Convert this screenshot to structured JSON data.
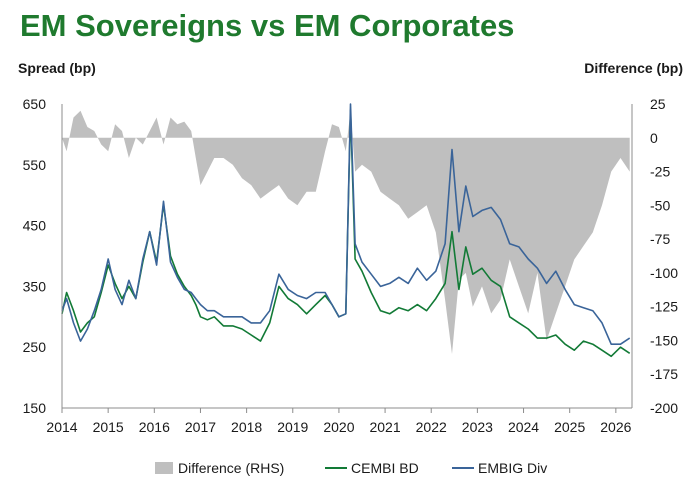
{
  "title": "EM Sovereigns vs EM Corporates",
  "ylabel_left": "Spread (bp)",
  "ylabel_right": "Difference (bp)",
  "colors": {
    "title": "#1f7a2e",
    "difference": "#bfbfbf",
    "cembi": "#127a36",
    "embig": "#3a6499"
  },
  "chart_data": {
    "type": "line",
    "title": "EM Sovereigns vs EM Corporates",
    "xlabel": "",
    "ylabel": "Spread (bp)",
    "y2label": "Difference (bp)",
    "xlim": [
      2014.0,
      2026.35
    ],
    "ylim": [
      150,
      650
    ],
    "y2lim": [
      -200,
      25
    ],
    "x_ticks": [
      "2014",
      "2015",
      "2016",
      "2017",
      "2018",
      "2019",
      "2020",
      "2021",
      "2022",
      "2023",
      "2024",
      "2025",
      "2026"
    ],
    "y_ticks": [
      150,
      250,
      350,
      450,
      550,
      650
    ],
    "y2_ticks": [
      25,
      0,
      -25,
      -50,
      -75,
      -100,
      -125,
      -150,
      -175,
      -200
    ],
    "grid": false,
    "legend_position": "bottom",
    "series": [
      {
        "name": "Difference (RHS)",
        "type": "area",
        "axis": "right",
        "x": [
          2014.0,
          2014.1,
          2014.25,
          2014.4,
          2014.55,
          2014.7,
          2014.85,
          2015.0,
          2015.15,
          2015.3,
          2015.45,
          2015.6,
          2015.75,
          2015.9,
          2016.05,
          2016.2,
          2016.35,
          2016.5,
          2016.65,
          2016.8,
          2016.9,
          2017.0,
          2017.15,
          2017.3,
          2017.5,
          2017.7,
          2017.9,
          2018.1,
          2018.3,
          2018.5,
          2018.7,
          2018.9,
          2019.1,
          2019.3,
          2019.5,
          2019.7,
          2019.85,
          2020.0,
          2020.15,
          2020.25,
          2020.35,
          2020.5,
          2020.7,
          2020.9,
          2021.1,
          2021.3,
          2021.5,
          2021.7,
          2021.9,
          2022.1,
          2022.3,
          2022.45,
          2022.6,
          2022.75,
          2022.9,
          2023.1,
          2023.3,
          2023.5,
          2023.7,
          2023.9,
          2024.1,
          2024.3,
          2024.5,
          2024.7,
          2024.9,
          2025.1,
          2025.3,
          2025.5,
          2025.7,
          2025.9,
          2026.1,
          2026.3
        ],
        "values": [
          0,
          -10,
          15,
          20,
          8,
          5,
          -5,
          -10,
          10,
          5,
          -15,
          0,
          -5,
          5,
          15,
          -5,
          15,
          10,
          12,
          5,
          -15,
          -35,
          -25,
          -15,
          -15,
          -20,
          -30,
          -35,
          -45,
          -40,
          -35,
          -45,
          -50,
          -40,
          -40,
          -10,
          10,
          8,
          -10,
          20,
          -25,
          -20,
          -25,
          -40,
          -45,
          -50,
          -60,
          -55,
          -50,
          -70,
          -120,
          -160,
          -105,
          -100,
          -125,
          -110,
          -130,
          -120,
          -90,
          -110,
          -130,
          -100,
          -150,
          -130,
          -110,
          -90,
          -80,
          -70,
          -50,
          -25,
          -15,
          -25
        ]
      },
      {
        "name": "CEMBI BD",
        "type": "line",
        "axis": "left",
        "x": [
          2014.0,
          2014.1,
          2014.25,
          2014.4,
          2014.55,
          2014.7,
          2014.85,
          2015.0,
          2015.15,
          2015.3,
          2015.45,
          2015.6,
          2015.75,
          2015.9,
          2016.05,
          2016.2,
          2016.35,
          2016.5,
          2016.65,
          2016.8,
          2016.9,
          2017.0,
          2017.15,
          2017.3,
          2017.5,
          2017.7,
          2017.9,
          2018.1,
          2018.3,
          2018.5,
          2018.7,
          2018.9,
          2019.1,
          2019.3,
          2019.5,
          2019.7,
          2019.85,
          2020.0,
          2020.15,
          2020.25,
          2020.35,
          2020.5,
          2020.7,
          2020.9,
          2021.1,
          2021.3,
          2021.5,
          2021.7,
          2021.9,
          2022.1,
          2022.3,
          2022.45,
          2022.6,
          2022.75,
          2022.9,
          2023.1,
          2023.3,
          2023.5,
          2023.7,
          2023.9,
          2024.1,
          2024.3,
          2024.5,
          2024.7,
          2024.9,
          2025.1,
          2025.3,
          2025.5,
          2025.7,
          2025.9,
          2026.1,
          2026.3
        ],
        "values": [
          305,
          340,
          310,
          275,
          290,
          300,
          340,
          385,
          355,
          330,
          350,
          330,
          390,
          440,
          390,
          485,
          400,
          370,
          350,
          335,
          320,
          300,
          295,
          300,
          285,
          285,
          280,
          270,
          260,
          290,
          350,
          330,
          320,
          305,
          320,
          335,
          320,
          300,
          305,
          640,
          395,
          375,
          340,
          310,
          305,
          315,
          310,
          320,
          310,
          330,
          355,
          440,
          345,
          415,
          370,
          380,
          360,
          350,
          300,
          290,
          280,
          265,
          265,
          270,
          255,
          245,
          260,
          255,
          245,
          235,
          250,
          240
        ]
      },
      {
        "name": "EMBIG Div",
        "type": "line",
        "axis": "left",
        "x": [
          2014.0,
          2014.1,
          2014.25,
          2014.4,
          2014.55,
          2014.7,
          2014.85,
          2015.0,
          2015.15,
          2015.3,
          2015.45,
          2015.6,
          2015.75,
          2015.9,
          2016.05,
          2016.2,
          2016.35,
          2016.5,
          2016.65,
          2016.8,
          2016.9,
          2017.0,
          2017.15,
          2017.3,
          2017.5,
          2017.7,
          2017.9,
          2018.1,
          2018.3,
          2018.5,
          2018.7,
          2018.9,
          2019.1,
          2019.3,
          2019.5,
          2019.7,
          2019.85,
          2020.0,
          2020.15,
          2020.25,
          2020.35,
          2020.5,
          2020.7,
          2020.9,
          2021.1,
          2021.3,
          2021.5,
          2021.7,
          2021.9,
          2022.1,
          2022.3,
          2022.45,
          2022.6,
          2022.75,
          2022.9,
          2023.1,
          2023.3,
          2023.5,
          2023.7,
          2023.9,
          2024.1,
          2024.3,
          2024.5,
          2024.7,
          2024.9,
          2025.1,
          2025.3,
          2025.5,
          2025.7,
          2025.9,
          2026.1,
          2026.3
        ],
        "values": [
          310,
          330,
          290,
          260,
          280,
          310,
          345,
          395,
          345,
          320,
          360,
          330,
          395,
          440,
          385,
          490,
          390,
          365,
          345,
          340,
          330,
          320,
          310,
          310,
          300,
          300,
          300,
          290,
          290,
          310,
          370,
          345,
          335,
          330,
          340,
          340,
          320,
          300,
          305,
          650,
          420,
          390,
          370,
          350,
          355,
          365,
          355,
          380,
          360,
          375,
          420,
          575,
          440,
          515,
          465,
          475,
          480,
          460,
          420,
          415,
          395,
          380,
          355,
          375,
          345,
          320,
          315,
          310,
          290,
          255,
          255,
          265
        ]
      }
    ]
  }
}
